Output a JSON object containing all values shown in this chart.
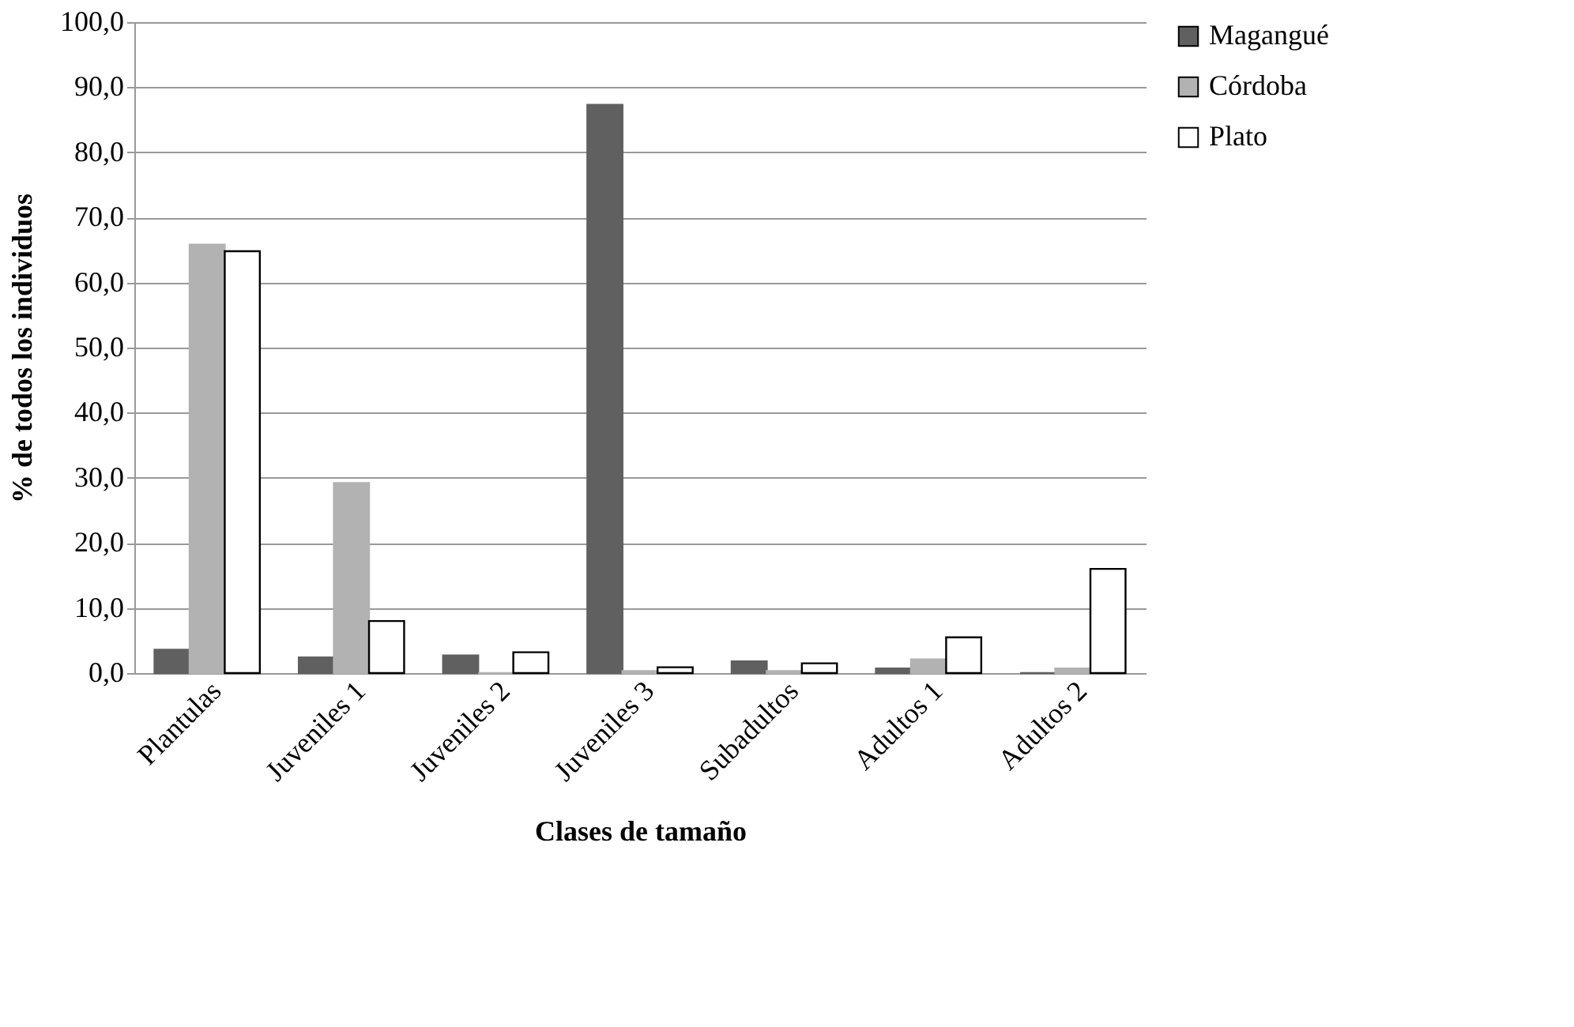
{
  "chart_data": {
    "type": "bar",
    "xlabel": "Clases de tamaño",
    "ylabel": "% de todos los individuos",
    "categories": [
      "Plantulas",
      "Juveniles 1",
      "Juveniles 2",
      "Juveniles 3",
      "Subadultos",
      "Adultos 1",
      "Adultos 2"
    ],
    "series": [
      {
        "name": "Magangué",
        "color": "#606060",
        "values": [
          3.6,
          2.4,
          2.7,
          87.3,
          1.8,
          0.7,
          0
        ]
      },
      {
        "name": "Córdoba",
        "color": "#b2b2b2",
        "values": [
          65.8,
          29.2,
          0,
          0.3,
          0.3,
          2.1,
          0.7
        ]
      },
      {
        "name": "Plato",
        "color": "#ffffff",
        "values": [
          64.8,
          8.0,
          3.2,
          0.9,
          1.5,
          5.5,
          16.0
        ]
      }
    ],
    "ylim": [
      0,
      100
    ],
    "yticks": [
      {
        "value": 0,
        "label": "0,0"
      },
      {
        "value": 10,
        "label": "10,0"
      },
      {
        "value": 20,
        "label": "20,0"
      },
      {
        "value": 30,
        "label": "30,0"
      },
      {
        "value": 40,
        "label": "40,0"
      },
      {
        "value": 50,
        "label": "50,0"
      },
      {
        "value": 60,
        "label": "60,0"
      },
      {
        "value": 70,
        "label": "70,0"
      },
      {
        "value": 80,
        "label": "80,0"
      },
      {
        "value": 90,
        "label": "90,0"
      },
      {
        "value": 100,
        "label": "100,0"
      }
    ],
    "grid": "y",
    "legend": "right"
  }
}
